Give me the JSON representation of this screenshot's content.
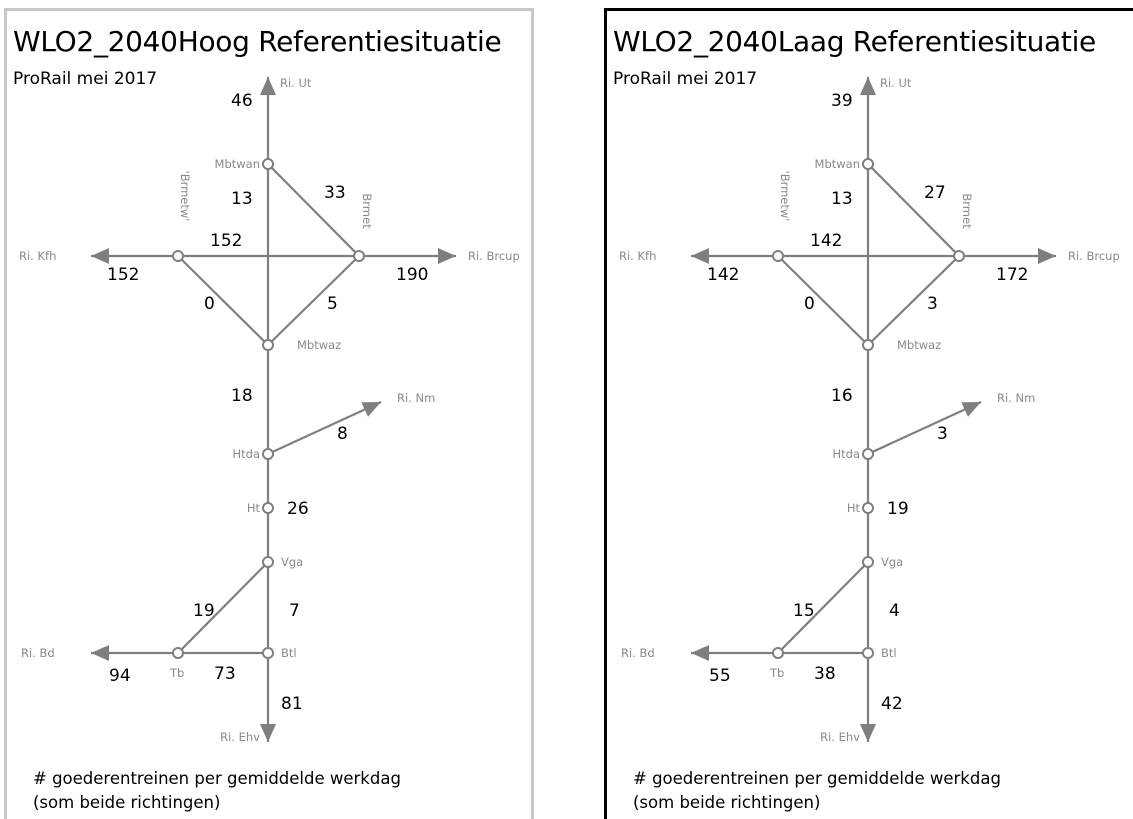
{
  "source": "ProRail mei 2017",
  "legend": {
    "line1": "# goederentreinen per gemiddelde werkdag",
    "line2": "(som beide richtingen)"
  },
  "directions": {
    "ut": "Ri. Ut",
    "kfh": "Ri. Kfh",
    "brcup": "Ri. Brcup",
    "nm": "Ri. Nm",
    "bd": "Ri. Bd",
    "ehv": "Ri. Ehv"
  },
  "nodes": {
    "mbtwan": "Mbtwan",
    "brmetw": "'Brmetw'",
    "brmet": "Brmet",
    "mbtwaz": "Mbtwaz",
    "htda": "Htda",
    "ht": "Ht",
    "vga": "Vga",
    "tb": "Tb",
    "btl": "Btl"
  },
  "colors": {
    "network": "#7f7f7f",
    "left_border": "#c8c8c8",
    "right_border": "#000000"
  },
  "scenarios": [
    {
      "title": "WLO2_2040Hoog Referentiesituatie",
      "counts": {
        "ut": "46",
        "mbtwan_mbtwaz": "13",
        "mbtwan_brmet": "33",
        "brmetw_brmet": "152",
        "kfh": "152",
        "brcup": "190",
        "brmetw_mbtwaz": "0",
        "brmet_mbtwaz": "5",
        "mbtwaz_htda": "18",
        "nm": "8",
        "ht": "26",
        "vga_tb": "19",
        "vga_btl": "7",
        "bd": "94",
        "tb_btl": "73",
        "ehv": "81"
      }
    },
    {
      "title": "WLO2_2040Laag Referentiesituatie",
      "counts": {
        "ut": "39",
        "mbtwan_mbtwaz": "13",
        "mbtwan_brmet": "27",
        "brmetw_brmet": "142",
        "kfh": "142",
        "brcup": "172",
        "brmetw_mbtwaz": "0",
        "brmet_mbtwaz": "3",
        "mbtwaz_htda": "16",
        "nm": "3",
        "ht": "19",
        "vga_tb": "15",
        "vga_btl": "4",
        "bd": "55",
        "tb_btl": "38",
        "ehv": "42"
      }
    }
  ]
}
